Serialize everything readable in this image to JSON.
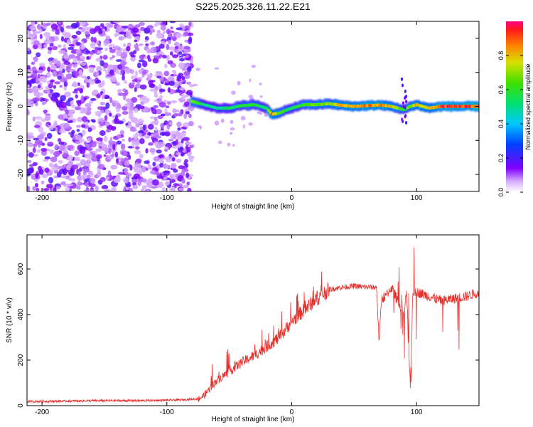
{
  "title": "S225.2025.326.11.22.E21",
  "chart_data": [
    {
      "type": "heatmap",
      "xlabel": "Height of straight line (km)",
      "ylabel": "Frequency (Hz)",
      "xlim": [
        -212,
        150
      ],
      "ylim": [
        -25,
        25
      ],
      "xticks": [
        -200,
        -100,
        0,
        100
      ],
      "yticks": [
        -20,
        -10,
        0,
        10,
        20
      ],
      "colorbar": {
        "label": "Normalized spectral amplitude",
        "ticks": [
          "0.0",
          "0.2",
          "0.4",
          "0.6",
          "0.8"
        ],
        "tick_values": [
          0.0,
          0.2,
          0.4,
          0.6,
          0.8
        ],
        "range": [
          0.0,
          1.0
        ]
      },
      "ridge": {
        "x": [
          -80,
          -70,
          -60,
          -50,
          -40,
          -30,
          -20,
          -16,
          -10,
          -5,
          0,
          10,
          20,
          30,
          40,
          50,
          60,
          70,
          80,
          85,
          90,
          95,
          100,
          110,
          120,
          130,
          140,
          150
        ],
        "freq": [
          1.5,
          0.5,
          -0.5,
          -0.5,
          0.2,
          0.5,
          -0.5,
          -2.3,
          -2.0,
          -1.2,
          -0.5,
          0.5,
          0.5,
          0.8,
          0.3,
          0.0,
          0.2,
          0.4,
          0.0,
          -0.5,
          -1.0,
          0.0,
          0.5,
          -0.5,
          0.0,
          0.0,
          0.0,
          0.0
        ],
        "amplitude": [
          0.75,
          0.5,
          0.5,
          0.55,
          0.6,
          0.6,
          0.55,
          0.9,
          0.7,
          0.6,
          0.55,
          0.65,
          0.7,
          0.7,
          0.85,
          0.85,
          0.9,
          0.9,
          0.8,
          0.7,
          0.6,
          0.7,
          0.85,
          0.8,
          0.95,
          0.95,
          0.95,
          0.95
        ]
      },
      "noise_region_x": [
        -212,
        -80
      ]
    },
    {
      "type": "line",
      "xlabel": "Height of straight line (km)",
      "ylabel": "SNR (10 * v/v)",
      "xlim": [
        -212,
        150
      ],
      "ylim": [
        0,
        750
      ],
      "xticks": [
        -200,
        -100,
        0,
        100
      ],
      "yticks": [
        0,
        200,
        400,
        600
      ],
      "series": [
        {
          "name": "SNR",
          "color": "#e8312e",
          "x": [
            -212,
            -180,
            -150,
            -120,
            -90,
            -75,
            -70,
            -65,
            -60,
            -50,
            -40,
            -30,
            -20,
            -10,
            0,
            10,
            20,
            30,
            40,
            50,
            60,
            68,
            70,
            72,
            75,
            80,
            85,
            90,
            92,
            95,
            97,
            100,
            110,
            120,
            130,
            140,
            150
          ],
          "y": [
            18,
            20,
            22,
            22,
            25,
            30,
            45,
            80,
            110,
            150,
            190,
            220,
            260,
            300,
            370,
            420,
            470,
            510,
            520,
            525,
            520,
            520,
            280,
            470,
            480,
            520,
            460,
            400,
            500,
            80,
            500,
            500,
            480,
            460,
            470,
            480,
            500
          ]
        }
      ]
    }
  ],
  "colors": {
    "line": "#e8312e",
    "noise": "#8a2be2",
    "axis": "#000000"
  }
}
